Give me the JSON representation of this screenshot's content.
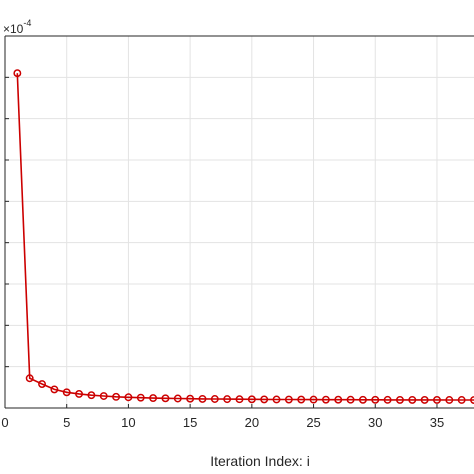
{
  "chart_data": {
    "type": "line",
    "title": "",
    "xlabel": "Iteration Index: i",
    "ylabel": "",
    "y_multiplier_label": "×10",
    "y_multiplier_exponent": "-4",
    "xlim": [
      0,
      38
    ],
    "ylim": [
      0,
      9
    ],
    "x_ticks": [
      0,
      5,
      10,
      15,
      20,
      25,
      30,
      35
    ],
    "x_tick_labels": [
      "0",
      "5",
      "10",
      "15",
      "20",
      "25",
      "30",
      "35"
    ],
    "y_ticks": [
      1,
      2,
      3,
      4,
      5,
      6,
      7,
      8,
      9
    ],
    "grid": true,
    "series": [
      {
        "color": "#cc0000",
        "marker": "circle",
        "x": [
          1,
          2,
          3,
          4,
          5,
          6,
          7,
          8,
          9,
          10,
          11,
          12,
          13,
          14,
          15,
          16,
          17,
          18,
          19,
          20,
          21,
          22,
          23,
          24,
          25,
          26,
          27,
          28,
          29,
          30,
          31,
          32,
          33,
          34,
          35,
          36,
          37,
          38
        ],
        "y": [
          8.1,
          0.72,
          0.58,
          0.45,
          0.38,
          0.34,
          0.31,
          0.29,
          0.27,
          0.26,
          0.25,
          0.24,
          0.235,
          0.23,
          0.225,
          0.22,
          0.218,
          0.215,
          0.212,
          0.21,
          0.208,
          0.206,
          0.205,
          0.204,
          0.203,
          0.202,
          0.201,
          0.2,
          0.199,
          0.198,
          0.197,
          0.196,
          0.196,
          0.195,
          0.195,
          0.194,
          0.194,
          0.193
        ]
      }
    ]
  }
}
